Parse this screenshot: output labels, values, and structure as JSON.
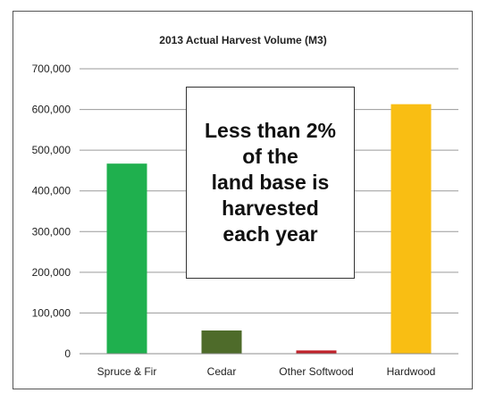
{
  "chart_data": {
    "type": "bar",
    "title": "2013 Actual Harvest Volume (M3)",
    "categories": [
      "Spruce & Fir",
      "Cedar",
      "Other Softwood",
      "Hardwood"
    ],
    "values": [
      467000,
      57000,
      8000,
      613000
    ],
    "colors": [
      "#1fb04e",
      "#4e6b2a",
      "#c0222b",
      "#f9be13"
    ],
    "ylim": [
      0,
      700000
    ],
    "yticks": [
      "0",
      "100,000",
      "200,000",
      "300,000",
      "400,000",
      "500,000",
      "600,000",
      "700,000"
    ],
    "grid": true,
    "legend": "none"
  },
  "callout": {
    "text": "Less than 2%\nof the\nland base is\nharvested\neach year"
  }
}
